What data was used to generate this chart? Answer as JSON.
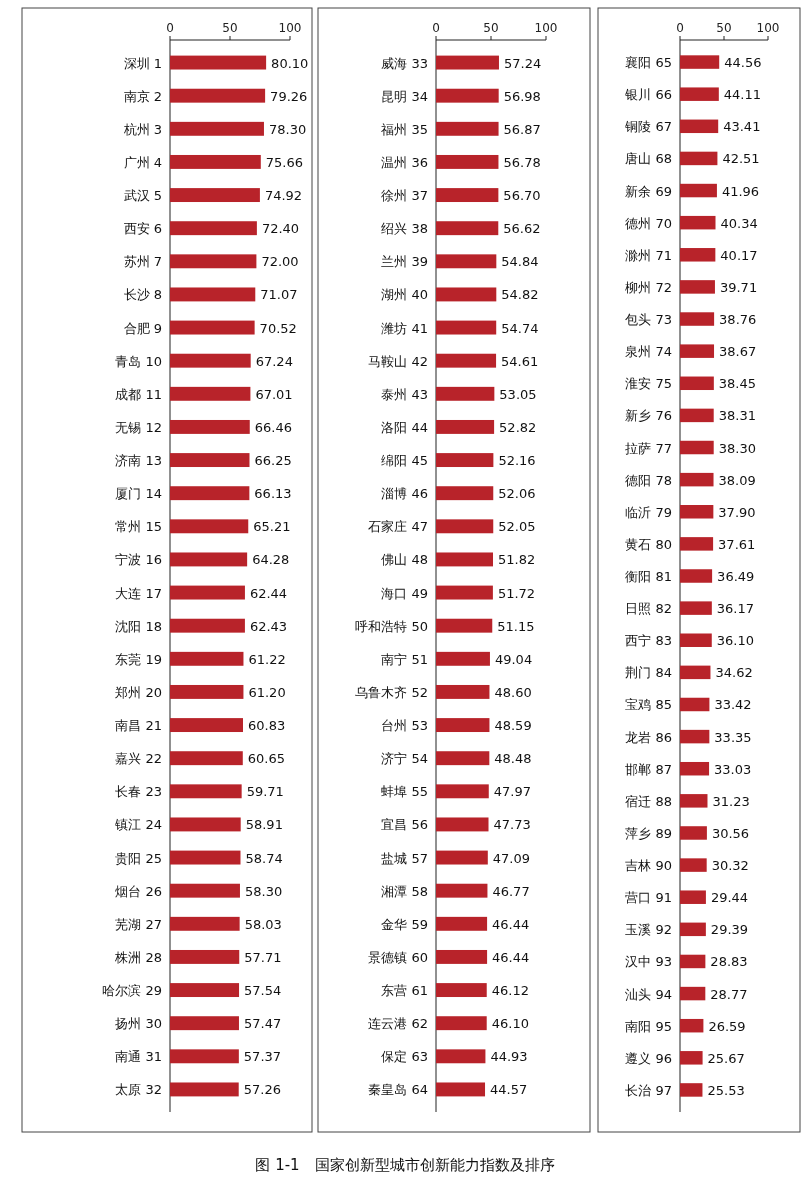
{
  "chart_data": [
    {
      "type": "bar",
      "orientation": "horizontal",
      "color": "#b8232a",
      "xlim": [
        0,
        100
      ],
      "xticks": [
        0,
        50,
        100
      ],
      "categories": [
        "深圳 1",
        "南京 2",
        "杭州 3",
        "广州 4",
        "武汉 5",
        "西安 6",
        "苏州 7",
        "长沙 8",
        "合肥 9",
        "青岛 10",
        "成都 11",
        "无锡 12",
        "济南 13",
        "厦门 14",
        "常州 15",
        "宁波 16",
        "大连 17",
        "沈阳 18",
        "东莞 19",
        "郑州 20",
        "南昌 21",
        "嘉兴 22",
        "长春 23",
        "镇江 24",
        "贵阳 25",
        "烟台 26",
        "芜湖 27",
        "株洲 28",
        "哈尔滨 29",
        "扬州 30",
        "南通 31",
        "太原 32"
      ],
      "values": [
        80.1,
        79.26,
        78.3,
        75.66,
        74.92,
        72.4,
        72.0,
        71.07,
        70.52,
        67.24,
        67.01,
        66.46,
        66.25,
        66.13,
        65.21,
        64.28,
        62.44,
        62.43,
        61.22,
        61.2,
        60.83,
        60.65,
        59.71,
        58.91,
        58.74,
        58.3,
        58.03,
        57.71,
        57.54,
        57.47,
        57.37,
        57.26
      ],
      "value_labels": [
        "80.10",
        "79.26",
        "78.30",
        "75.66",
        "74.92",
        "72.40",
        "72.00",
        "71.07",
        "70.52",
        "67.24",
        "67.01",
        "66.46",
        "66.25",
        "66.13",
        "65.21",
        "64.28",
        "62.44",
        "62.43",
        "61.22",
        "61.20",
        "60.83",
        "60.65",
        "59.71",
        "58.91",
        "58.74",
        "58.30",
        "58.03",
        "57.71",
        "57.54",
        "57.47",
        "57.37",
        "57.26"
      ],
      "annotations": [
        "图 1-1　国家创新型城市创新能力指数及排序"
      ]
    },
    {
      "type": "bar",
      "orientation": "horizontal",
      "color": "#b8232a",
      "xlim": [
        0,
        100
      ],
      "xticks": [
        0,
        50,
        100
      ],
      "categories": [
        "威海 33",
        "昆明 34",
        "福州 35",
        "温州 36",
        "徐州 37",
        "绍兴 38",
        "兰州 39",
        "湖州 40",
        "潍坊 41",
        "马鞍山 42",
        "泰州 43",
        "洛阳 44",
        "绵阳 45",
        "淄博 46",
        "石家庄 47",
        "佛山 48",
        "海口 49",
        "呼和浩特 50",
        "南宁 51",
        "乌鲁木齐 52",
        "台州 53",
        "济宁 54",
        "蚌埠 55",
        "宜昌 56",
        "盐城 57",
        "湘潭 58",
        "金华 59",
        "景德镇 60",
        "东营 61",
        "连云港 62",
        "保定 63",
        "秦皇岛 64"
      ],
      "values": [
        57.24,
        56.98,
        56.87,
        56.78,
        56.7,
        56.62,
        54.84,
        54.82,
        54.74,
        54.61,
        53.05,
        52.82,
        52.16,
        52.06,
        52.05,
        51.82,
        51.72,
        51.15,
        49.04,
        48.6,
        48.59,
        48.48,
        47.97,
        47.73,
        47.09,
        46.77,
        46.44,
        46.44,
        46.12,
        46.1,
        44.93,
        44.57
      ],
      "value_labels": [
        "57.24",
        "56.98",
        "56.87",
        "56.78",
        "56.70",
        "56.62",
        "54.84",
        "54.82",
        "54.74",
        "54.61",
        "53.05",
        "52.82",
        "52.16",
        "52.06",
        "52.05",
        "51.82",
        "51.72",
        "51.15",
        "49.04",
        "48.60",
        "48.59",
        "48.48",
        "47.97",
        "47.73",
        "47.09",
        "46.77",
        "46.44",
        "46.44",
        "46.12",
        "46.10",
        "44.93",
        "44.57"
      ]
    },
    {
      "type": "bar",
      "orientation": "horizontal",
      "color": "#b8232a",
      "xlim": [
        0,
        100
      ],
      "xticks": [
        0,
        50,
        100
      ],
      "categories": [
        "襄阳 65",
        "银川 66",
        "铜陵 67",
        "唐山 68",
        "新余 69",
        "德州 70",
        "滁州 71",
        "柳州 72",
        "包头 73",
        "泉州 74",
        "淮安 75",
        "新乡 76",
        "拉萨 77",
        "德阳 78",
        "临沂 79",
        "黄石 80",
        "衡阳 81",
        "日照 82",
        "西宁 83",
        "荆门 84",
        "宝鸡 85",
        "龙岩 86",
        "邯郸 87",
        "宿迁 88",
        "萍乡 89",
        "吉林 90",
        "营口 91",
        "玉溪 92",
        "汉中 93",
        "汕头 94",
        "南阳 95",
        "遵义 96",
        "长治 97"
      ],
      "values": [
        44.56,
        44.11,
        43.41,
        42.51,
        41.96,
        40.34,
        40.17,
        39.71,
        38.76,
        38.67,
        38.45,
        38.31,
        38.3,
        38.09,
        37.9,
        37.61,
        36.49,
        36.17,
        36.1,
        34.62,
        33.42,
        33.35,
        33.03,
        31.23,
        30.56,
        30.32,
        29.44,
        29.39,
        28.83,
        28.77,
        26.59,
        25.67,
        25.53
      ],
      "value_labels": [
        "44.56",
        "44.11",
        "43.41",
        "42.51",
        "41.96",
        "40.34",
        "40.17",
        "39.71",
        "38.76",
        "38.67",
        "38.45",
        "38.31",
        "38.30",
        "38.09",
        "37.90",
        "37.61",
        "36.49",
        "36.17",
        "36.10",
        "34.62",
        "33.42",
        "33.35",
        "33.03",
        "31.23",
        "30.56",
        "30.32",
        "29.44",
        "29.39",
        "28.83",
        "28.77",
        "26.59",
        "25.67",
        "25.53"
      ]
    }
  ]
}
